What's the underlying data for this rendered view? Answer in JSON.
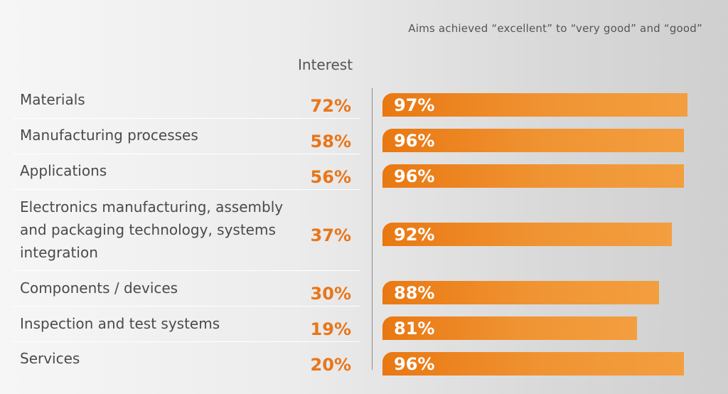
{
  "chart_data": {
    "type": "bar",
    "title": "",
    "subtitle": "Aims achieved “excellent” to “very good” and “good”",
    "column_header": "Interest",
    "categories": [
      "Materials",
      "Manufacturing processes",
      "Applications",
      "Electronics manufacturing, assembly and packaging technology, systems integration",
      "Components / devices",
      "Inspection and test systems",
      "Services"
    ],
    "category_lines": [
      [
        "Materials"
      ],
      [
        "Manufacturing processes"
      ],
      [
        "Applications"
      ],
      [
        "Electronics manufacturing, assembly",
        "and packaging technology, systems",
        "integration"
      ],
      [
        "Components / devices"
      ],
      [
        "Inspection and test systems"
      ],
      [
        "Services"
      ]
    ],
    "series": [
      {
        "name": "Interest",
        "values": [
          72,
          58,
          56,
          37,
          30,
          19,
          20
        ],
        "labels": [
          "72%",
          "58%",
          "56%",
          "37%",
          "30%",
          "19%",
          "20%"
        ]
      },
      {
        "name": "Aims achieved “excellent” to “very good” and “good”",
        "values": [
          97,
          96,
          96,
          92,
          88,
          81,
          96
        ],
        "labels": [
          "97%",
          "96%",
          "96%",
          "92%",
          "88%",
          "81%",
          "96%"
        ]
      }
    ],
    "xlim": [
      0,
      100
    ],
    "grid": false,
    "colors": {
      "bar": "#ee8a28",
      "interest_text": "#e8761a",
      "label_text": "#4a4a4a"
    }
  }
}
